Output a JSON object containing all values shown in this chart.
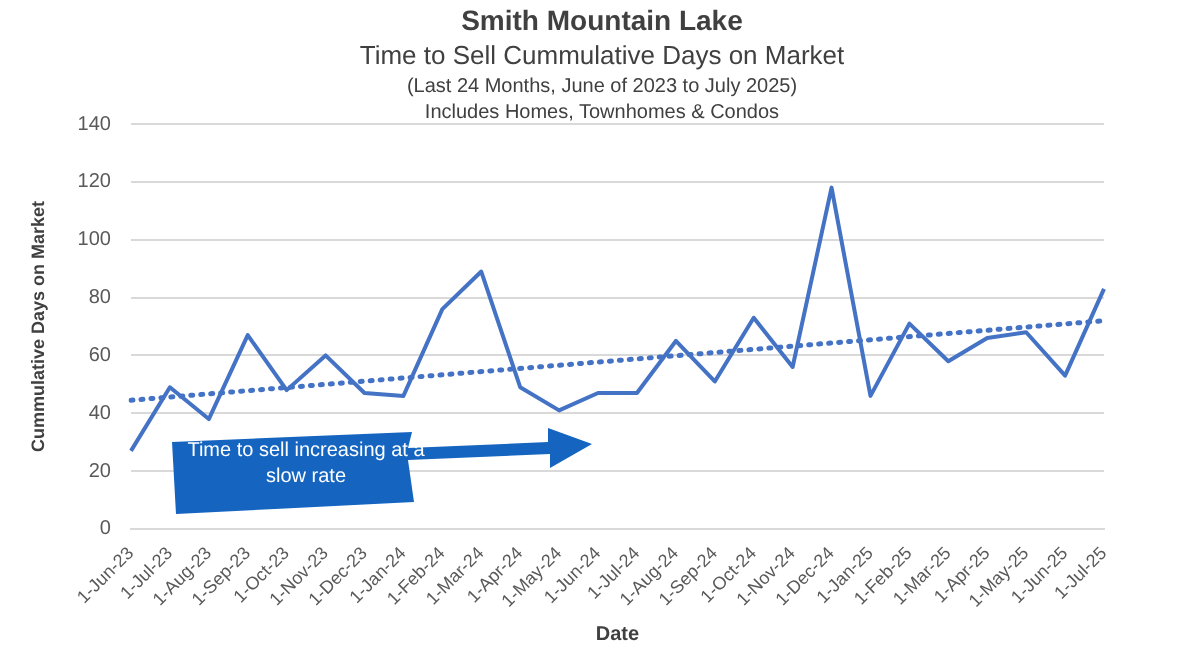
{
  "chart_data": {
    "type": "line",
    "title": "Smith Mountain Lake",
    "subtitle": "Time to Sell Cummulative Days on Market",
    "xlabel": "Date",
    "ylabel": "Cummulative Days on Market",
    "annotations": [
      "(Last 24 Months, June of 2023 to July 2025)",
      "Includes Homes, Townhomes & Condos",
      "Time to sell increasing at a slow rate"
    ],
    "categories": [
      "1-Jun-23",
      "1-Jul-23",
      "1-Aug-23",
      "1-Sep-23",
      "1-Oct-23",
      "1-Nov-23",
      "1-Dec-23",
      "1-Jan-24",
      "1-Feb-24",
      "1-Mar-24",
      "1-Apr-24",
      "1-May-24",
      "1-Jun-24",
      "1-Jul-24",
      "1-Aug-24",
      "1-Sep-24",
      "1-Oct-24",
      "1-Nov-24",
      "1-Dec-24",
      "1-Jan-25",
      "1-Feb-25",
      "1-Mar-25",
      "1-Apr-25",
      "1-May-25",
      "1-Jun-25",
      "1-Jul-25"
    ],
    "series": [
      {
        "type": "line",
        "color": "#4472c4",
        "line_style": "solid",
        "values": [
          27,
          49,
          38,
          67,
          48,
          60,
          47,
          46,
          76,
          89,
          49,
          41,
          47,
          47,
          65,
          51,
          73,
          56,
          118,
          46,
          71,
          58,
          66,
          68,
          53,
          83
        ]
      },
      {
        "type": "line",
        "color": "#4472c4",
        "line_style": "dotted",
        "values": [
          44.5,
          null,
          null,
          null,
          null,
          null,
          null,
          null,
          null,
          null,
          null,
          null,
          null,
          null,
          null,
          null,
          null,
          null,
          null,
          null,
          null,
          null,
          null,
          null,
          null,
          72
        ]
      }
    ],
    "ylim": [
      0,
      140
    ],
    "yticks": [
      0,
      20,
      40,
      60,
      80,
      100,
      120,
      140
    ],
    "grid": "y",
    "legend": false,
    "marker": "none"
  }
}
